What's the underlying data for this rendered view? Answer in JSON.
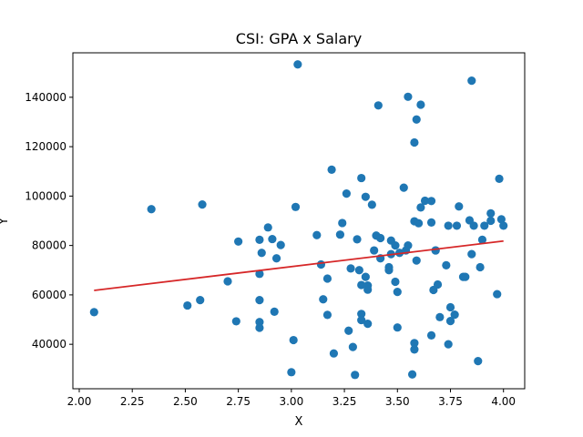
{
  "chart_data": {
    "type": "scatter",
    "title": "CSI: GPA x Salary",
    "xlabel": "X",
    "ylabel": "Y",
    "xlim": [
      1.97,
      4.1
    ],
    "ylim": [
      22000,
      158000
    ],
    "xticks": [
      2.0,
      2.25,
      2.5,
      2.75,
      3.0,
      3.25,
      3.5,
      3.75,
      4.0
    ],
    "xtick_labels": [
      "2.00",
      "2.25",
      "2.50",
      "2.75",
      "3.00",
      "3.25",
      "3.50",
      "3.75",
      "4.00"
    ],
    "yticks": [
      40000,
      60000,
      80000,
      100000,
      120000,
      140000
    ],
    "ytick_labels": [
      "40000",
      "60000",
      "80000",
      "100000",
      "120000",
      "140000"
    ],
    "grid": false,
    "colors": {
      "points": "#1f77b4",
      "trend": "#d62728",
      "axes": "#000000"
    },
    "trend_line": {
      "x": [
        2.07,
        4.0
      ],
      "y": [
        61800,
        81800
      ]
    },
    "points": [
      [
        2.07,
        53000
      ],
      [
        2.34,
        94700
      ],
      [
        2.51,
        55700
      ],
      [
        2.57,
        57900
      ],
      [
        2.58,
        96600
      ],
      [
        2.7,
        65500
      ],
      [
        2.74,
        49300
      ],
      [
        2.75,
        81600
      ],
      [
        2.85,
        82300
      ],
      [
        2.85,
        68500
      ],
      [
        2.85,
        57900
      ],
      [
        2.85,
        49000
      ],
      [
        2.85,
        46700
      ],
      [
        2.86,
        77000
      ],
      [
        2.89,
        87300
      ],
      [
        2.91,
        82600
      ],
      [
        2.92,
        53200
      ],
      [
        2.93,
        74800
      ],
      [
        2.95,
        80200
      ],
      [
        3.0,
        28700
      ],
      [
        3.01,
        41700
      ],
      [
        3.02,
        95600
      ],
      [
        3.03,
        153300
      ],
      [
        3.12,
        84200
      ],
      [
        3.14,
        72300
      ],
      [
        3.15,
        58200
      ],
      [
        3.17,
        66600
      ],
      [
        3.17,
        51900
      ],
      [
        3.19,
        110700
      ],
      [
        3.2,
        36300
      ],
      [
        3.23,
        84400
      ],
      [
        3.24,
        89100
      ],
      [
        3.26,
        101000
      ],
      [
        3.27,
        45500
      ],
      [
        3.28,
        70700
      ],
      [
        3.29,
        38900
      ],
      [
        3.3,
        27600
      ],
      [
        3.31,
        82500
      ],
      [
        3.32,
        70000
      ],
      [
        3.33,
        64000
      ],
      [
        3.33,
        52300
      ],
      [
        3.33,
        49800
      ],
      [
        3.33,
        107300
      ],
      [
        3.35,
        99700
      ],
      [
        3.35,
        67300
      ],
      [
        3.36,
        63800
      ],
      [
        3.36,
        62100
      ],
      [
        3.36,
        48300
      ],
      [
        3.38,
        96500
      ],
      [
        3.39,
        78000
      ],
      [
        3.4,
        84000
      ],
      [
        3.41,
        136700
      ],
      [
        3.42,
        83000
      ],
      [
        3.42,
        74800
      ],
      [
        3.46,
        71200
      ],
      [
        3.46,
        70000
      ],
      [
        3.47,
        82000
      ],
      [
        3.47,
        76500
      ],
      [
        3.49,
        80000
      ],
      [
        3.49,
        65300
      ],
      [
        3.5,
        61200
      ],
      [
        3.5,
        46800
      ],
      [
        3.51,
        77000
      ],
      [
        3.53,
        103400
      ],
      [
        3.54,
        78000
      ],
      [
        3.55,
        80000
      ],
      [
        3.55,
        140200
      ],
      [
        3.57,
        27800
      ],
      [
        3.58,
        37900
      ],
      [
        3.58,
        40500
      ],
      [
        3.58,
        121700
      ],
      [
        3.58,
        89800
      ],
      [
        3.59,
        131000
      ],
      [
        3.59,
        73900
      ],
      [
        3.6,
        89000
      ],
      [
        3.61,
        95400
      ],
      [
        3.61,
        137000
      ],
      [
        3.63,
        98100
      ],
      [
        3.66,
        98000
      ],
      [
        3.66,
        89300
      ],
      [
        3.66,
        43600
      ],
      [
        3.67,
        62000
      ],
      [
        3.68,
        78000
      ],
      [
        3.68,
        78000
      ],
      [
        3.69,
        64200
      ],
      [
        3.7,
        51000
      ],
      [
        3.73,
        72000
      ],
      [
        3.74,
        40000
      ],
      [
        3.74,
        88000
      ],
      [
        3.75,
        55000
      ],
      [
        3.75,
        49400
      ],
      [
        3.77,
        52000
      ],
      [
        3.78,
        88000
      ],
      [
        3.79,
        95800
      ],
      [
        3.81,
        67300
      ],
      [
        3.82,
        67300
      ],
      [
        3.84,
        90200
      ],
      [
        3.85,
        76500
      ],
      [
        3.85,
        146700
      ],
      [
        3.86,
        88000
      ],
      [
        3.88,
        33200
      ],
      [
        3.89,
        71200
      ],
      [
        3.9,
        82300
      ],
      [
        3.91,
        88000
      ],
      [
        3.94,
        93000
      ],
      [
        3.94,
        90000
      ],
      [
        3.97,
        60300
      ],
      [
        3.98,
        107000
      ],
      [
        3.99,
        90600
      ],
      [
        4.0,
        88000
      ]
    ]
  }
}
